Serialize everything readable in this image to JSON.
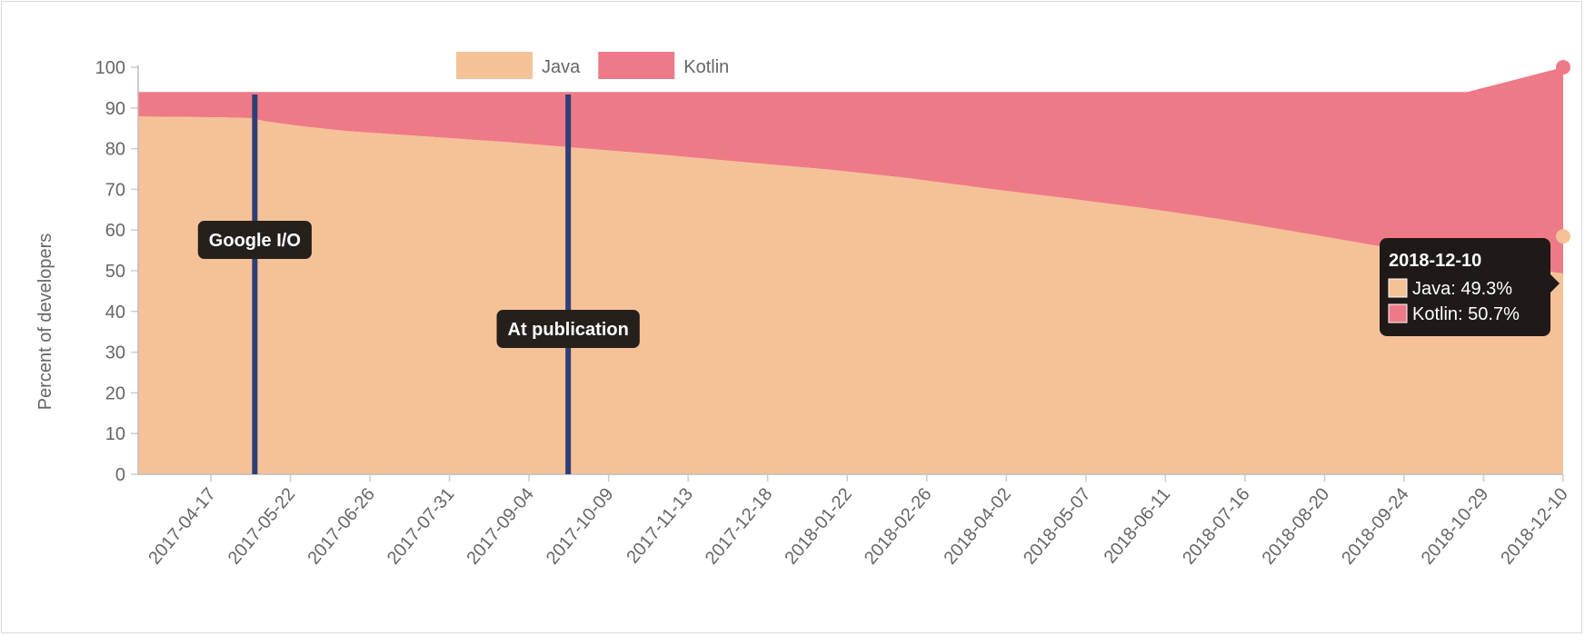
{
  "chart_data": {
    "type": "area",
    "title": "",
    "xlabel": "",
    "ylabel": "Percent of developers",
    "ylim": [
      0,
      100
    ],
    "yticks": [
      0,
      10,
      20,
      30,
      40,
      50,
      60,
      70,
      80,
      90,
      100
    ],
    "xtick_labels": [
      "2017-04-17",
      "2017-05-22",
      "2017-06-26",
      "2017-07-31",
      "2017-09-04",
      "2017-10-09",
      "2017-11-13",
      "2017-12-18",
      "2018-01-22",
      "2018-02-26",
      "2018-04-02",
      "2018-05-07",
      "2018-06-11",
      "2018-07-16",
      "2018-08-20",
      "2018-09-24",
      "2018-10-29",
      "2018-12-10"
    ],
    "stacked": true,
    "legend": {
      "position": "top",
      "entries": [
        "Java",
        "Kotlin"
      ]
    },
    "x": [
      "2017-03-27",
      "2017-04-17",
      "2017-05-01",
      "2017-05-15",
      "2017-05-22",
      "2017-06-05",
      "2017-06-26",
      "2017-07-31",
      "2017-09-04",
      "2017-10-09",
      "2017-11-13",
      "2017-12-18",
      "2018-01-22",
      "2018-02-26",
      "2018-04-02",
      "2018-05-07",
      "2018-06-11",
      "2018-07-16",
      "2018-08-20",
      "2018-09-24",
      "2018-10-29",
      "2018-12-10"
    ],
    "series": [
      {
        "name": "Java",
        "color": "#f5c298",
        "values": [
          87.9,
          87.8,
          87.7,
          87.5,
          86.7,
          85.6,
          84.3,
          83.0,
          81.6,
          80.0,
          78.4,
          76.6,
          74.9,
          72.8,
          70.2,
          67.8,
          65.3,
          62.4,
          59.1,
          55.7,
          52.7,
          49.3
        ]
      },
      {
        "name": "Kotlin",
        "color": "#ef7a87",
        "values": [
          6.0,
          6.1,
          6.2,
          6.4,
          7.2,
          8.3,
          9.6,
          10.9,
          12.3,
          13.9,
          15.5,
          17.3,
          19.0,
          21.1,
          23.7,
          26.1,
          28.6,
          31.5,
          34.8,
          38.2,
          41.2,
          50.7
        ]
      }
    ],
    "annotations": [
      {
        "label": "Google I/O",
        "x": "2017-05-17"
      },
      {
        "label": "At publication",
        "x": "2017-10-01"
      }
    ],
    "tooltip": {
      "title": "2018-12-10",
      "items": [
        {
          "text": "Java: 49.3%",
          "color": "#f5c298"
        },
        {
          "text": "Kotlin: 50.7%",
          "color": "#ef7a87"
        }
      ]
    }
  }
}
